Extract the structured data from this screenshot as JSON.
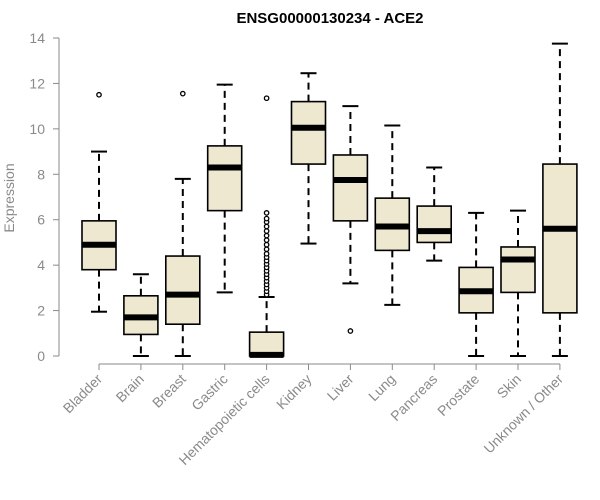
{
  "chart_data": {
    "type": "boxplot",
    "title": "ENSG00000130234 - ACE2",
    "ylabel": "Expression",
    "xlabel": "",
    "ylim": [
      0,
      14
    ],
    "yticks": [
      0,
      2,
      4,
      6,
      8,
      10,
      12,
      14
    ],
    "grid": false,
    "box_color": "#efe8d0",
    "outline_color": "#000000",
    "axis_color": "#8a8a8a",
    "categories": [
      "Bladder",
      "Brain",
      "Breast",
      "Gastric",
      "Hematopoietic cells",
      "Kidney",
      "Liver",
      "Lung",
      "Pancreas",
      "Prostate",
      "Skin",
      "Unknown / Other"
    ],
    "boxes": [
      {
        "whisker_low": 1.95,
        "q1": 3.8,
        "median": 4.9,
        "q3": 5.95,
        "whisker_high": 9.0,
        "outliers": [
          11.5
        ]
      },
      {
        "whisker_low": 0.0,
        "q1": 0.95,
        "median": 1.7,
        "q3": 2.65,
        "whisker_high": 3.6,
        "outliers": []
      },
      {
        "whisker_low": 0.0,
        "q1": 1.4,
        "median": 2.7,
        "q3": 4.4,
        "whisker_high": 7.8,
        "outliers": [
          11.55
        ]
      },
      {
        "whisker_low": 2.8,
        "q1": 6.4,
        "median": 8.3,
        "q3": 9.25,
        "whisker_high": 11.95,
        "outliers": []
      },
      {
        "whisker_low": 0.0,
        "q1": 0.0,
        "median": 0.05,
        "q3": 1.05,
        "whisker_high": 2.6,
        "outliers": [
          2.7,
          2.85,
          3.0,
          3.15,
          3.3,
          3.45,
          3.6,
          3.75,
          3.9,
          4.05,
          4.2,
          4.35,
          4.5,
          4.7,
          4.9,
          5.1,
          5.3,
          5.5,
          5.7,
          5.9,
          6.05,
          6.3,
          11.35
        ]
      },
      {
        "whisker_low": 4.95,
        "q1": 8.45,
        "median": 10.05,
        "q3": 11.2,
        "whisker_high": 12.45,
        "outliers": []
      },
      {
        "whisker_low": 3.2,
        "q1": 5.95,
        "median": 7.75,
        "q3": 8.85,
        "whisker_high": 11.0,
        "outliers": [
          1.1
        ]
      },
      {
        "whisker_low": 2.25,
        "q1": 4.65,
        "median": 5.7,
        "q3": 6.95,
        "whisker_high": 10.15,
        "outliers": []
      },
      {
        "whisker_low": 4.2,
        "q1": 5.0,
        "median": 5.5,
        "q3": 6.6,
        "whisker_high": 8.3,
        "outliers": []
      },
      {
        "whisker_low": 0.0,
        "q1": 1.9,
        "median": 2.85,
        "q3": 3.9,
        "whisker_high": 6.3,
        "outliers": []
      },
      {
        "whisker_low": 0.0,
        "q1": 2.8,
        "median": 4.25,
        "q3": 4.8,
        "whisker_high": 6.4,
        "outliers": []
      },
      {
        "whisker_low": 0.0,
        "q1": 1.9,
        "median": 5.6,
        "q3": 8.45,
        "whisker_high": 13.75,
        "outliers": []
      }
    ]
  }
}
